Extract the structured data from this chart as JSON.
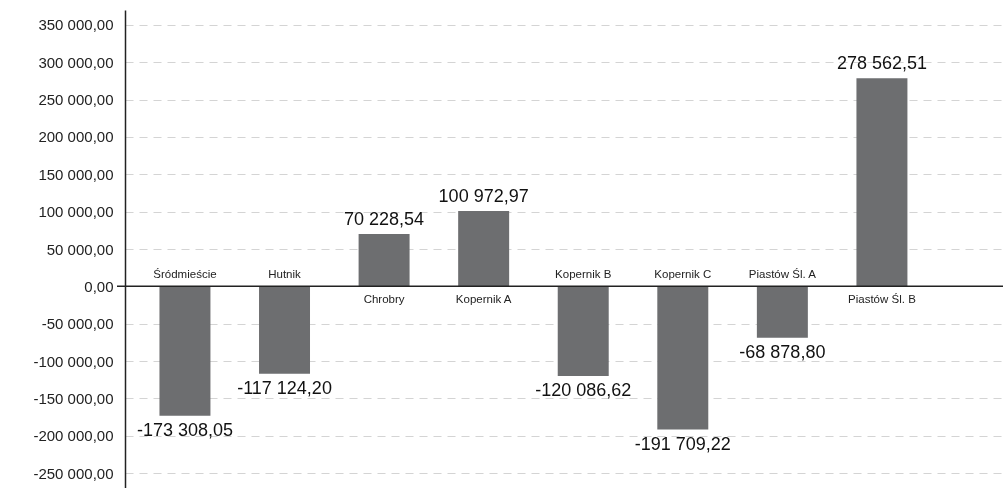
{
  "chart_data": {
    "type": "bar",
    "categories": [
      "Śródmieście",
      "Hutnik",
      "Chrobry",
      "Kopernik A",
      "Kopernik B",
      "Kopernik C",
      "Piastów Śl. A",
      "Piastów Śl. B"
    ],
    "values": [
      -173308.05,
      -117124.2,
      70228.54,
      100972.97,
      -120086.62,
      -191709.22,
      -68878.8,
      278562.51
    ],
    "value_labels": [
      "-173 308,05",
      "-117 124,20",
      "70 228,54",
      "100 972,97",
      "-120 086,62",
      "-191 709,22",
      "-68 878,80",
      "278 562,51"
    ],
    "color": "#6d6e70",
    "ylim": [
      -270000,
      370000
    ],
    "yticks": [
      {
        "value": -250000,
        "label": "-250 000,00"
      },
      {
        "value": -200000,
        "label": "-200 000,00"
      },
      {
        "value": -150000,
        "label": "-150 000,00"
      },
      {
        "value": -100000,
        "label": "-100 000,00"
      },
      {
        "value": -50000,
        "label": "-50 000,00"
      },
      {
        "value": 0,
        "label": "0,00"
      },
      {
        "value": 50000,
        "label": "50 000,00"
      },
      {
        "value": 100000,
        "label": "100 000,00"
      },
      {
        "value": 150000,
        "label": "150 000,00"
      },
      {
        "value": 200000,
        "label": "200 000,00"
      },
      {
        "value": 250000,
        "label": "250 000,00"
      },
      {
        "value": 300000,
        "label": "300 000,00"
      },
      {
        "value": 350000,
        "label": "350 000,00"
      }
    ],
    "grid": "y"
  }
}
